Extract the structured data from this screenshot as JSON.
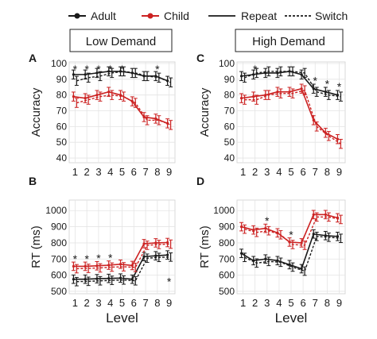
{
  "legend": {
    "items": [
      {
        "label": "Adult",
        "color": "#1a1a1a",
        "style": "solid-marker"
      },
      {
        "label": "Child",
        "color": "#cc2222",
        "style": "solid-marker"
      },
      {
        "label": "Repeat",
        "color": "#1a1a1a",
        "style": "solid"
      },
      {
        "label": "Switch",
        "color": "#1a1a1a",
        "style": "dotted"
      }
    ],
    "placement": "top"
  },
  "column_titles": [
    "Low Demand",
    "High Demand"
  ],
  "colors": {
    "adult": "#1a1a1a",
    "child": "#cc2222"
  },
  "chart_data": [
    {
      "type": "line",
      "panel": "A",
      "column": "Low Demand",
      "xlabel": "",
      "ylabel": "Accuracy",
      "x": [
        1,
        2,
        3,
        4,
        5,
        6,
        7,
        8,
        9
      ],
      "xlim": [
        0.5,
        9.5
      ],
      "ylim": [
        37,
        101
      ],
      "yticks": [
        40,
        50,
        60,
        70,
        80,
        90,
        100
      ],
      "grid": true,
      "series": [
        {
          "name": "Adult",
          "condition": "Repeat",
          "values": [
            93,
            93,
            94,
            95,
            95,
            94,
            92,
            92,
            89
          ]
        },
        {
          "name": "Adult",
          "condition": "Switch",
          "values": [
            89,
            91,
            92,
            94,
            95,
            94,
            92,
            91,
            88
          ]
        },
        {
          "name": "Child",
          "condition": "Repeat",
          "values": [
            79,
            78,
            80,
            82,
            80,
            76,
            66,
            65,
            62
          ]
        },
        {
          "name": "Child",
          "condition": "Switch",
          "values": [
            75,
            77,
            79,
            80,
            79,
            75,
            64,
            64,
            61
          ]
        }
      ],
      "annotations": {
        "symbol": "*",
        "at_x": [
          1,
          2,
          3,
          4,
          5,
          8
        ]
      }
    },
    {
      "type": "line",
      "panel": "C",
      "column": "High Demand",
      "xlabel": "",
      "ylabel": "Accuracy",
      "x": [
        1,
        2,
        3,
        4,
        5,
        6,
        7,
        8,
        9
      ],
      "xlim": [
        0.5,
        9.5
      ],
      "ylim": [
        37,
        101
      ],
      "yticks": [
        40,
        50,
        60,
        70,
        80,
        90,
        100
      ],
      "grid": true,
      "series": [
        {
          "name": "Adult",
          "condition": "Repeat",
          "values": [
            92,
            93,
            94,
            94,
            95,
            93,
            84,
            82,
            80
          ]
        },
        {
          "name": "Adult",
          "condition": "Switch",
          "values": [
            91,
            94,
            95,
            95,
            95,
            94,
            82,
            80,
            79
          ]
        },
        {
          "name": "Child",
          "condition": "Repeat",
          "values": [
            78,
            79,
            80,
            82,
            82,
            84,
            64,
            56,
            52
          ]
        },
        {
          "name": "Child",
          "condition": "Switch",
          "values": [
            77,
            77,
            80,
            81,
            81,
            83,
            60,
            54,
            49
          ]
        }
      ],
      "annotations": {
        "symbol": "*",
        "at_x": [
          2,
          7,
          8,
          9
        ]
      }
    },
    {
      "type": "line",
      "panel": "B",
      "column": "Low Demand",
      "xlabel": "Level",
      "ylabel": "RT (ms)",
      "x": [
        1,
        2,
        3,
        4,
        5,
        6,
        7,
        8,
        9
      ],
      "xlim": [
        0.5,
        9.5
      ],
      "ylim": [
        485,
        1065
      ],
      "yticks": [
        500,
        600,
        700,
        800,
        900,
        1000
      ],
      "grid": true,
      "series": [
        {
          "name": "Adult",
          "condition": "Repeat",
          "values": [
            575,
            575,
            578,
            580,
            582,
            575,
            715,
            720,
            725
          ]
        },
        {
          "name": "Adult",
          "condition": "Switch",
          "values": [
            560,
            562,
            565,
            568,
            570,
            565,
            705,
            710,
            712
          ]
        },
        {
          "name": "Child",
          "condition": "Repeat",
          "values": [
            655,
            655,
            658,
            662,
            668,
            660,
            795,
            800,
            802
          ]
        },
        {
          "name": "Child",
          "condition": "Switch",
          "values": [
            640,
            642,
            645,
            650,
            652,
            648,
            785,
            790,
            792
          ]
        }
      ],
      "annotations": {
        "symbol": "*",
        "at_x": [
          1,
          2,
          3,
          4,
          9
        ]
      }
    },
    {
      "type": "line",
      "panel": "D",
      "column": "High Demand",
      "xlabel": "Level",
      "ylabel": "RT (ms)",
      "x": [
        1,
        2,
        3,
        4,
        5,
        6,
        7,
        8,
        9
      ],
      "xlim": [
        0.5,
        9.5
      ],
      "ylim": [
        485,
        1065
      ],
      "yticks": [
        500,
        600,
        700,
        800,
        900,
        1000
      ],
      "grid": true,
      "series": [
        {
          "name": "Adult",
          "condition": "Repeat",
          "values": [
            735,
            690,
            700,
            690,
            665,
            640,
            855,
            845,
            840
          ]
        },
        {
          "name": "Adult",
          "condition": "Switch",
          "values": [
            710,
            675,
            685,
            680,
            650,
            625,
            840,
            835,
            828
          ]
        },
        {
          "name": "Child",
          "condition": "Repeat",
          "values": [
            900,
            880,
            890,
            862,
            805,
            800,
            975,
            975,
            955
          ]
        },
        {
          "name": "Child",
          "condition": "Switch",
          "values": [
            885,
            865,
            875,
            850,
            790,
            785,
            960,
            960,
            945
          ]
        }
      ],
      "annotations": {
        "symbol": "*",
        "at_x": [
          3,
          5
        ]
      }
    }
  ],
  "panel_letters": [
    "A",
    "C",
    "B",
    "D"
  ]
}
